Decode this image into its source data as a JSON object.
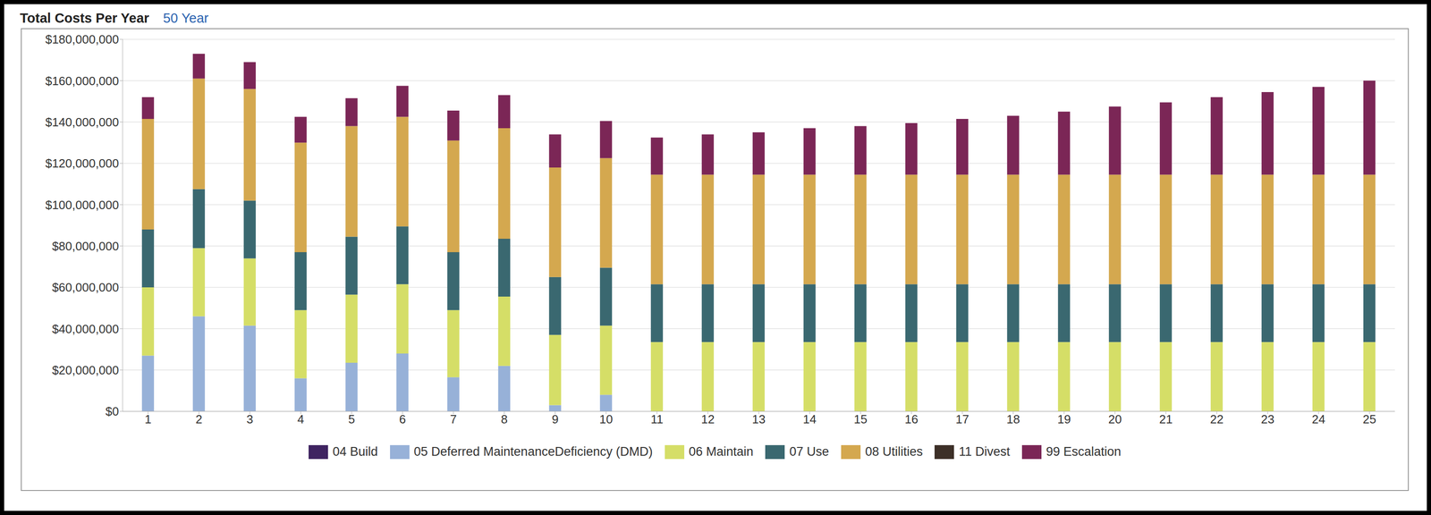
{
  "chart_data": {
    "type": "bar",
    "title": "Total Costs Per Year",
    "subtitle": "50 Year",
    "categories": [
      "1",
      "2",
      "3",
      "4",
      "5",
      "6",
      "7",
      "8",
      "9",
      "10",
      "11",
      "12",
      "13",
      "14",
      "15",
      "16",
      "17",
      "18",
      "19",
      "20",
      "21",
      "22",
      "23",
      "24",
      "25"
    ],
    "series": [
      {
        "name": "04 Build",
        "color": "#3f2461",
        "values": [
          0,
          0,
          0,
          0,
          0,
          0,
          0,
          0,
          0,
          0,
          0,
          0,
          0,
          0,
          0,
          0,
          0,
          0,
          0,
          0,
          0,
          0,
          0,
          0,
          0
        ]
      },
      {
        "name": "05 Deferred MaintenanceDeficiency (DMD)",
        "color": "#97b1d8",
        "values": [
          27000000,
          46000000,
          41500000,
          16000000,
          23500000,
          28000000,
          16500000,
          22000000,
          3000000,
          8000000,
          0,
          0,
          0,
          0,
          0,
          0,
          0,
          0,
          0,
          0,
          0,
          0,
          0,
          0,
          0
        ]
      },
      {
        "name": "06 Maintain",
        "color": "#d5de67",
        "values": [
          33000000,
          33000000,
          32500000,
          33000000,
          33000000,
          33500000,
          32500000,
          33500000,
          34000000,
          33500000,
          33500000,
          33500000,
          33500000,
          33500000,
          33500000,
          33500000,
          33500000,
          33500000,
          33500000,
          33500000,
          33500000,
          33500000,
          33500000,
          33500000,
          33500000
        ]
      },
      {
        "name": "07 Use",
        "color": "#3a6870",
        "values": [
          28000000,
          28500000,
          28000000,
          28000000,
          28000000,
          28000000,
          28000000,
          28000000,
          28000000,
          28000000,
          28000000,
          28000000,
          28000000,
          28000000,
          28000000,
          28000000,
          28000000,
          28000000,
          28000000,
          28000000,
          28000000,
          28000000,
          28000000,
          28000000,
          28000000
        ]
      },
      {
        "name": "08 Utilities",
        "color": "#d4a84f",
        "values": [
          53500000,
          53500000,
          54000000,
          53000000,
          53500000,
          53000000,
          54000000,
          53500000,
          53000000,
          53000000,
          53000000,
          53000000,
          53000000,
          53000000,
          53000000,
          53000000,
          53000000,
          53000000,
          53000000,
          53000000,
          53000000,
          53000000,
          53000000,
          53000000,
          53000000
        ]
      },
      {
        "name": "11 Divest",
        "color": "#3d3028",
        "values": [
          0,
          0,
          0,
          0,
          0,
          0,
          0,
          0,
          0,
          0,
          0,
          0,
          0,
          0,
          0,
          0,
          0,
          0,
          0,
          0,
          0,
          0,
          0,
          0,
          0
        ]
      },
      {
        "name": "99 Escalation",
        "color": "#7b2656",
        "values": [
          10500000,
          12000000,
          13000000,
          12500000,
          13500000,
          15000000,
          14500000,
          16000000,
          16000000,
          18000000,
          18000000,
          19500000,
          20500000,
          22500000,
          23500000,
          25000000,
          27000000,
          28500000,
          30500000,
          33000000,
          35000000,
          37500000,
          40000000,
          42500000,
          45500000
        ]
      }
    ],
    "ylim": [
      0,
      180000000
    ],
    "yticks": [
      {
        "value": 0,
        "label": "$0"
      },
      {
        "value": 20000000,
        "label": "$20,000,000"
      },
      {
        "value": 40000000,
        "label": "$40,000,000"
      },
      {
        "value": 60000000,
        "label": "$60,000,000"
      },
      {
        "value": 80000000,
        "label": "$80,000,000"
      },
      {
        "value": 100000000,
        "label": "$100,000,000"
      },
      {
        "value": 120000000,
        "label": "$120,000,000"
      },
      {
        "value": 140000000,
        "label": "$140,000,000"
      },
      {
        "value": 160000000,
        "label": "$160,000,000"
      },
      {
        "value": 180000000,
        "label": "$180,000,000"
      }
    ],
    "stacked": true,
    "grid": true,
    "legend": "bottom"
  }
}
